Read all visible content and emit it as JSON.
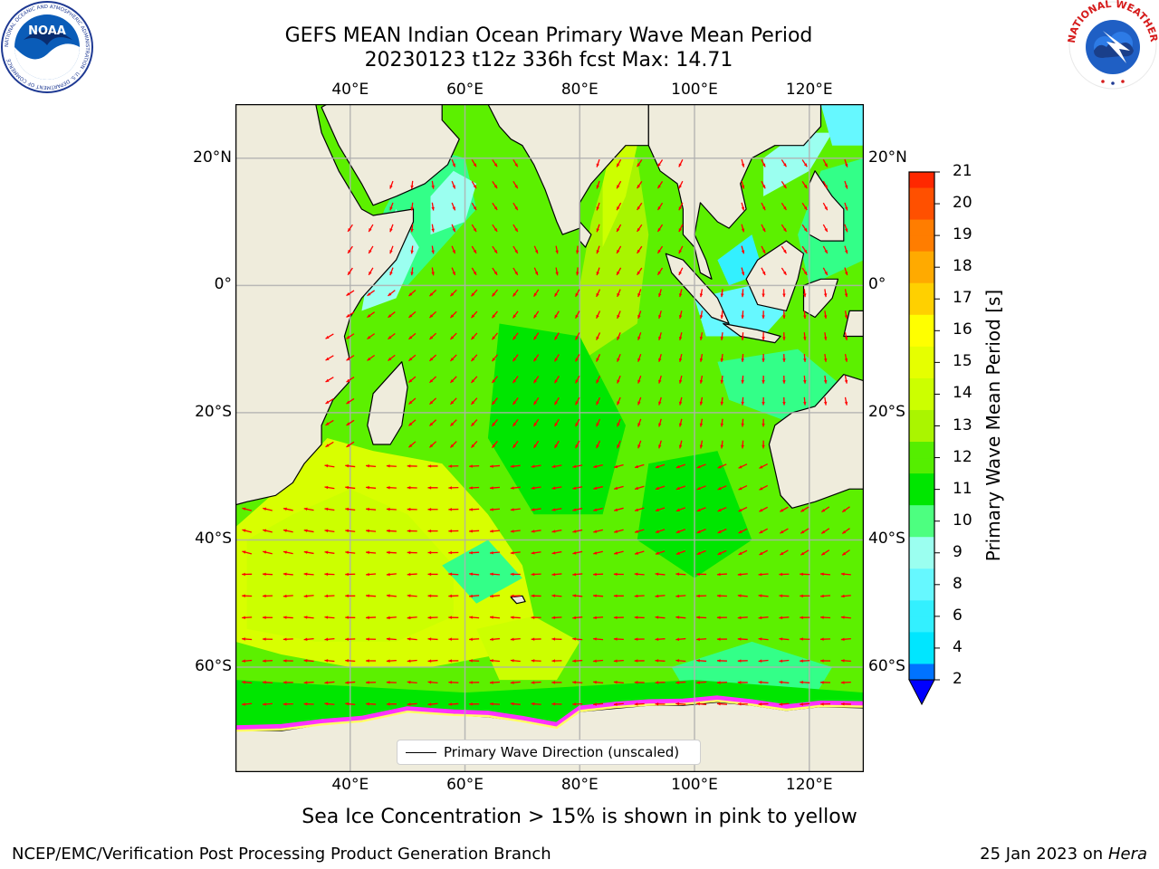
{
  "header": {
    "title_line1": "GEFS MEAN Indian Ocean Primary Wave Mean Period",
    "title_line2": "20230123 t12z 336h fcst   Max: 14.71"
  },
  "logos": {
    "noaa_text": "NOAA",
    "noaa_ring": "NATIONAL OCEANIC AND ATMOSPHERIC ADMINISTRATION · U.S. DEPARTMENT OF COMMERCE",
    "nws_ring": "NATIONAL WEATHER SERVICE"
  },
  "map": {
    "projection": "equirectangular",
    "lon_range": [
      20,
      129.5
    ],
    "lat_range": [
      -76.5,
      28.5
    ],
    "gridlines": true,
    "lon_ticks": [
      {
        "value": 40,
        "label": "40°E"
      },
      {
        "value": 60,
        "label": "60°E"
      },
      {
        "value": 80,
        "label": "80°E"
      },
      {
        "value": 100,
        "label": "100°E"
      },
      {
        "value": 120,
        "label": "120°E"
      }
    ],
    "lat_ticks": [
      {
        "value": 20,
        "label": "20°N"
      },
      {
        "value": 0,
        "label": "0°"
      },
      {
        "value": -20,
        "label": "20°S"
      },
      {
        "value": -40,
        "label": "40°S"
      },
      {
        "value": -60,
        "label": "60°S"
      }
    ],
    "colors": {
      "land": "#efecdc",
      "arrow": "#ff0000",
      "sea_ice_low": "#ff33ff",
      "sea_ice_high": "#ffff66",
      "grid": "#b0b0b0"
    }
  },
  "colorbar": {
    "title": "Primary Wave Mean Period [s]",
    "levels": [
      2,
      4,
      6,
      7,
      8,
      9,
      10,
      11,
      12,
      13,
      14,
      15,
      16,
      17,
      18,
      19,
      20,
      21
    ],
    "tick_labels": [
      "2",
      "4",
      "6",
      "8",
      "9",
      "10",
      "11",
      "12",
      "13",
      "14",
      "15",
      "16",
      "17",
      "18",
      "19",
      "20",
      "21"
    ],
    "colors": [
      "#0073ff",
      "#00e6ff",
      "#33f0ff",
      "#66f8ff",
      "#9bfff0",
      "#4dff80",
      "#00e600",
      "#55ee00",
      "#aaf500",
      "#ccff00",
      "#e6ff00",
      "#ffff00",
      "#ffd000",
      "#ffaa00",
      "#ff7d00",
      "#ff5000",
      "#ff2800",
      "#ff0000"
    ],
    "under_color": "#0000ff"
  },
  "legend": {
    "label": "Primary Wave Direction (unscaled)"
  },
  "note": "Sea Ice Concentration > 15% is shown in pink to yellow",
  "footer": {
    "left": "NCEP/EMC/Verification Post Processing Product Generation Branch",
    "date": "25 Jan 2023 on ",
    "machine": "Hera"
  }
}
